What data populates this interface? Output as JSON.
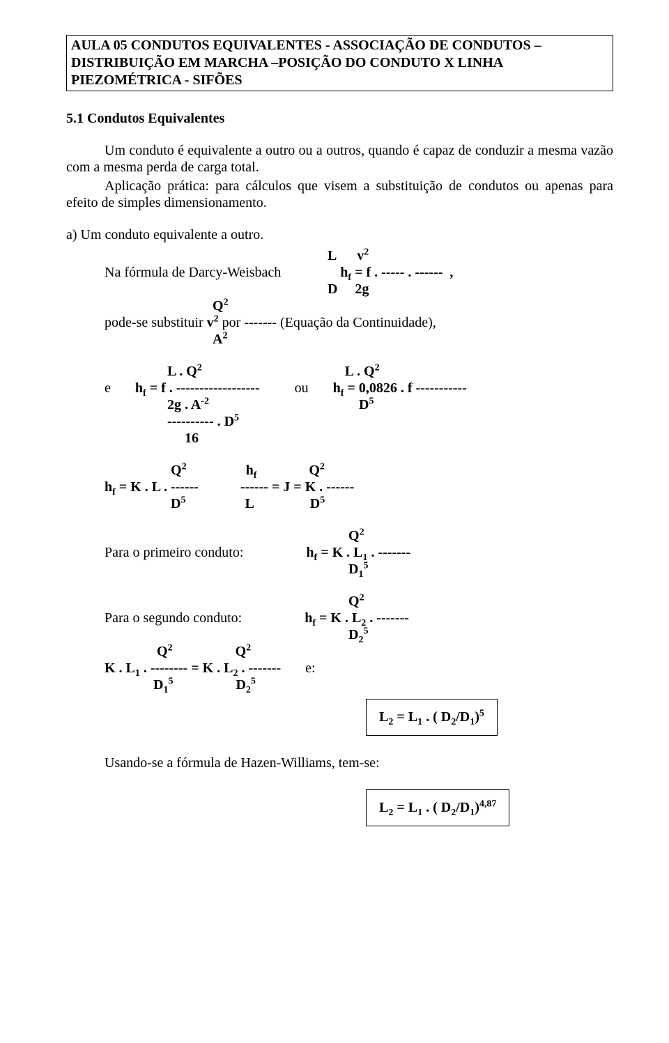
{
  "header": {
    "line": "AULA 05     CONDUTOS EQUIVALENTES - ASSOCIAÇÃO DE CONDUTOS – DISTRIBUIÇÃO EM MARCHA –POSIÇÃO DO CONDUTO X LINHA PIEZOMÉTRICA - SIFÕES"
  },
  "section": {
    "number": "5.1",
    "title": "Condutos Equivalentes"
  },
  "body": {
    "p1": "Um conduto é equivalente a outro ou a outros, quando é capaz de conduzir a mesma vazão com a mesma perda de carga total.",
    "p2": "Aplicação prática: para cálculos que visem a substituição de condutos ou apenas para efeito de simples dimensionamento.",
    "a_label": "a) Um conduto equivalente a outro."
  },
  "formulas": {
    "darcy_intro": "Na fórmula de Darcy-Weisbach",
    "continuity_pre": "pode-se substituir ",
    "continuity_mid": " por ------- (Equação da Continuidade),",
    "primeiro": "Para o primeiro conduto:",
    "segundo": "Para o segundo conduto:",
    "e_label": "e",
    "e_colon": "e:",
    "ou": "ou"
  },
  "hw": {
    "text": "Usando-se a fórmula de Hazen-Williams, tem-se:"
  },
  "results": {
    "r1_a": "L",
    "r1_b": " = L",
    "r1_c": " . ( D",
    "r1_d": "/D",
    "r1_e": ")",
    "r2_exp": "4,87"
  }
}
